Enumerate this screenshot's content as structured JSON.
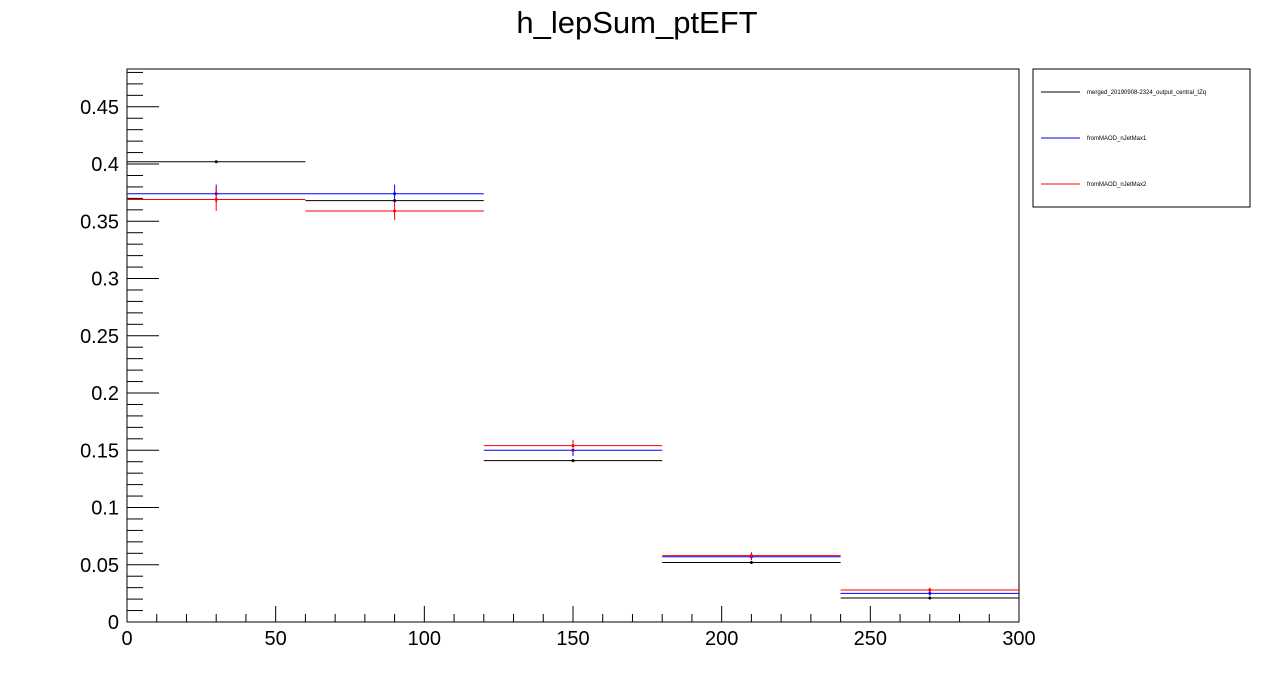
{
  "chart_data": {
    "type": "histogram",
    "title": "h_lepSum_ptEFT",
    "xlabel": "",
    "ylabel": "",
    "xlim": [
      0,
      300
    ],
    "ylim": [
      0,
      0.483
    ],
    "x_ticks": [
      "0",
      "50",
      "100",
      "150",
      "200",
      "250",
      "300"
    ],
    "y_ticks": [
      "0",
      "0.05",
      "0.1",
      "0.15",
      "0.2",
      "0.25",
      "0.3",
      "0.35",
      "0.4",
      "0.45"
    ],
    "bin_edges": [
      0,
      60,
      120,
      180,
      240,
      300
    ],
    "grid": false,
    "legend_position": "top-right, outside plot",
    "series": [
      {
        "name": "merged_20190908-2324_output_central_tZq",
        "color": "#000000",
        "values": [
          0.402,
          0.368,
          0.141,
          0.052,
          0.021
        ],
        "errors": [
          0.001,
          0.001,
          0.001,
          0.001,
          0.001
        ]
      },
      {
        "name": "fromMAOD_nJetMax1",
        "color": "#0000ff",
        "values": [
          0.374,
          0.374,
          0.15,
          0.057,
          0.025
        ],
        "errors": [
          0.008,
          0.008,
          0.005,
          0.003,
          0.002
        ]
      },
      {
        "name": "fromMAOD_nJetMax2",
        "color": "#ff0000",
        "values": [
          0.369,
          0.359,
          0.154,
          0.058,
          0.028
        ],
        "errors": [
          0.01,
          0.008,
          0.005,
          0.003,
          0.002
        ]
      }
    ]
  }
}
